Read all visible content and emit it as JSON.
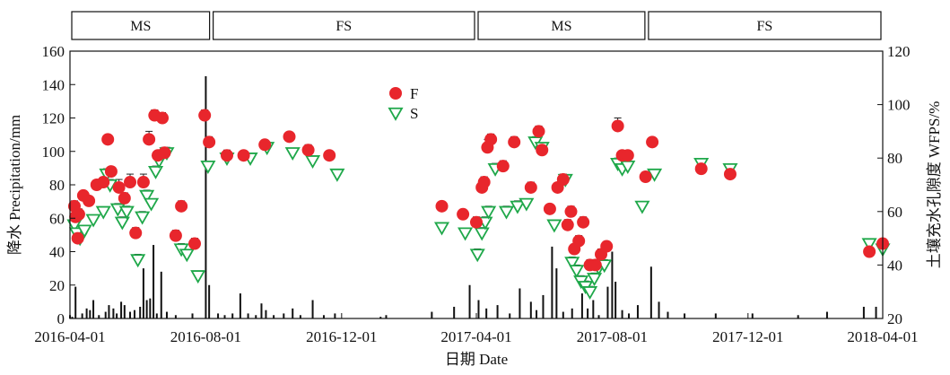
{
  "chart_data": {
    "type": "scatter",
    "season_bands": [
      {
        "label": "MS",
        "start": "2016-04-01",
        "end": "2016-08-06"
      },
      {
        "label": "FS",
        "start": "2016-08-06",
        "end": "2017-04-01"
      },
      {
        "label": "MS",
        "start": "2017-04-01",
        "end": "2017-09-01"
      },
      {
        "label": "FS",
        "start": "2017-09-01",
        "end": "2018-04-01"
      }
    ],
    "x_axis": {
      "label": "日期 Date",
      "range": [
        "2016-04-01",
        "2018-04-01"
      ],
      "ticks": [
        "2016-04-01",
        "2016-08-01",
        "2016-12-01",
        "2017-04-01",
        "2017-08-01",
        "2017-12-01",
        "2018-04-01"
      ]
    },
    "y_axis_left": {
      "label": "降水 Precipitation/mm",
      "range": [
        0,
        160
      ],
      "ticks": [
        0,
        20,
        40,
        60,
        80,
        100,
        120,
        140,
        160
      ]
    },
    "y_axis_right": {
      "label": "土壤充水孔隙度 WFPS/%",
      "range": [
        20,
        120
      ],
      "ticks": [
        20,
        40,
        60,
        80,
        100,
        120
      ]
    },
    "legend": {
      "position": "upper-center",
      "items": [
        {
          "name": "F",
          "marker": "filled-circle",
          "color": "#e8262c"
        },
        {
          "name": "S",
          "marker": "open-triangle-down",
          "color": "#1fa84a"
        }
      ]
    },
    "colors": {
      "F": "#e8262c",
      "S": "#1fa84a",
      "precipitation": "#111111"
    },
    "series": [
      {
        "name": "F",
        "axis": "right",
        "points": [
          [
            "2016-04-05",
            62,
            2
          ],
          [
            "2016-04-06",
            58,
            2
          ],
          [
            "2016-04-08",
            50,
            1.5
          ],
          [
            "2016-04-09",
            59,
            2
          ],
          [
            "2016-04-13",
            66,
            1.5
          ],
          [
            "2016-04-18",
            64,
            1.5
          ],
          [
            "2016-04-25",
            70,
            1.5
          ],
          [
            "2016-05-01",
            71,
            1.5
          ],
          [
            "2016-05-05",
            87,
            1.5
          ],
          [
            "2016-05-08",
            75,
            1.5
          ],
          [
            "2016-05-15",
            69,
            3
          ],
          [
            "2016-05-20",
            65,
            2
          ],
          [
            "2016-05-25",
            71,
            3
          ],
          [
            "2016-05-30",
            52,
            2
          ],
          [
            "2016-06-06",
            71,
            3
          ],
          [
            "2016-06-11",
            87,
            3
          ],
          [
            "2016-06-16",
            96,
            2
          ],
          [
            "2016-06-19",
            81,
            1.5
          ],
          [
            "2016-06-23",
            95,
            2
          ],
          [
            "2016-06-25",
            82,
            2
          ],
          [
            "2016-07-05",
            51,
            2
          ],
          [
            "2016-07-10",
            62,
            2
          ],
          [
            "2016-07-22",
            48,
            2
          ],
          [
            "2016-07-31",
            96,
            2
          ],
          [
            "2016-08-04",
            86,
            2
          ],
          [
            "2016-08-20",
            81,
            2
          ],
          [
            "2016-09-04",
            81,
            1.5
          ],
          [
            "2016-09-23",
            85,
            1.5
          ],
          [
            "2016-10-15",
            88,
            1.5
          ],
          [
            "2016-11-01",
            83,
            2
          ],
          [
            "2016-11-20",
            81,
            1.5
          ],
          [
            "2017-03-01",
            62,
            1.5
          ],
          [
            "2017-03-20",
            59,
            1.5
          ],
          [
            "2017-04-01",
            56,
            2
          ],
          [
            "2017-04-06",
            69,
            2
          ],
          [
            "2017-04-08",
            71,
            2
          ],
          [
            "2017-04-11",
            84,
            3
          ],
          [
            "2017-04-14",
            87,
            2
          ],
          [
            "2017-04-25",
            77,
            2
          ],
          [
            "2017-05-05",
            86,
            2
          ],
          [
            "2017-05-20",
            69,
            2
          ],
          [
            "2017-05-27",
            90,
            2
          ],
          [
            "2017-05-30",
            83,
            2
          ],
          [
            "2017-06-06",
            61,
            1.5
          ],
          [
            "2017-06-13",
            69,
            1.5
          ],
          [
            "2017-06-18",
            72,
            2
          ],
          [
            "2017-06-22",
            55,
            2
          ],
          [
            "2017-06-25",
            60,
            2
          ],
          [
            "2017-06-28",
            46,
            1.5
          ],
          [
            "2017-07-02",
            49,
            2
          ],
          [
            "2017-07-06",
            56,
            2
          ],
          [
            "2017-07-12",
            40,
            2
          ],
          [
            "2017-07-17",
            40,
            2
          ],
          [
            "2017-07-22",
            44,
            2
          ],
          [
            "2017-07-27",
            47,
            1.5
          ],
          [
            "2017-08-06",
            92,
            3
          ],
          [
            "2017-08-10",
            81,
            1.5
          ],
          [
            "2017-08-15",
            81,
            1.5
          ],
          [
            "2017-08-31",
            73,
            1.5
          ],
          [
            "2017-09-06",
            86,
            1.5
          ],
          [
            "2017-10-20",
            76,
            1.5
          ],
          [
            "2017-11-15",
            74,
            1.5
          ],
          [
            "2018-03-20",
            45,
            1.5
          ],
          [
            "2018-04-01",
            48,
            1.5
          ]
        ]
      },
      {
        "name": "S",
        "axis": "right",
        "points": [
          [
            "2016-04-05",
            55,
            2
          ],
          [
            "2016-04-07",
            52,
            1.5
          ],
          [
            "2016-04-10",
            50,
            1.5
          ],
          [
            "2016-04-14",
            53,
            1.5
          ],
          [
            "2016-04-22",
            57,
            1.5
          ],
          [
            "2016-05-01",
            60,
            1.5
          ],
          [
            "2016-05-04",
            74,
            2
          ],
          [
            "2016-05-07",
            70,
            2
          ],
          [
            "2016-05-14",
            61,
            2
          ],
          [
            "2016-05-18",
            56,
            2
          ],
          [
            "2016-05-22",
            60,
            2
          ],
          [
            "2016-06-01",
            42,
            2
          ],
          [
            "2016-06-05",
            58,
            2
          ],
          [
            "2016-06-09",
            66,
            2
          ],
          [
            "2016-06-13",
            63,
            1.5
          ],
          [
            "2016-06-17",
            75,
            2
          ],
          [
            "2016-06-20",
            79,
            2
          ],
          [
            "2016-06-27",
            82,
            2
          ],
          [
            "2016-07-10",
            46,
            2
          ],
          [
            "2016-07-15",
            44,
            1.5
          ],
          [
            "2016-07-25",
            36,
            1.5
          ],
          [
            "2016-08-03",
            77,
            1.5
          ],
          [
            "2016-08-20",
            80,
            1.5
          ],
          [
            "2016-09-10",
            80,
            1.5
          ],
          [
            "2016-09-25",
            84,
            1.5
          ],
          [
            "2016-10-18",
            82,
            1.5
          ],
          [
            "2016-11-05",
            79,
            1.5
          ],
          [
            "2016-11-27",
            74,
            1.5
          ],
          [
            "2017-03-01",
            54,
            1.5
          ],
          [
            "2017-03-22",
            52,
            1.5
          ],
          [
            "2017-04-02",
            44,
            2
          ],
          [
            "2017-04-06",
            52,
            2
          ],
          [
            "2017-04-09",
            56,
            2
          ],
          [
            "2017-04-12",
            60,
            2
          ],
          [
            "2017-04-18",
            76,
            2
          ],
          [
            "2017-04-28",
            60,
            2
          ],
          [
            "2017-05-08",
            62,
            2
          ],
          [
            "2017-05-16",
            63,
            1.5
          ],
          [
            "2017-05-24",
            86,
            2
          ],
          [
            "2017-05-30",
            84,
            1.5
          ],
          [
            "2017-06-10",
            55,
            1.5
          ],
          [
            "2017-06-20",
            72,
            1.5
          ],
          [
            "2017-06-26",
            41,
            2
          ],
          [
            "2017-06-30",
            38,
            2
          ],
          [
            "2017-07-04",
            34,
            2
          ],
          [
            "2017-07-08",
            32,
            2
          ],
          [
            "2017-07-12",
            30,
            2
          ],
          [
            "2017-07-16",
            35,
            2
          ],
          [
            "2017-07-20",
            39,
            2
          ],
          [
            "2017-07-25",
            40,
            2
          ],
          [
            "2017-08-06",
            78,
            2
          ],
          [
            "2017-08-10",
            76,
            2
          ],
          [
            "2017-08-15",
            77,
            1.5
          ],
          [
            "2017-08-28",
            62,
            1.5
          ],
          [
            "2017-09-08",
            74,
            1.5
          ],
          [
            "2017-10-20",
            78,
            1.5
          ],
          [
            "2017-11-15",
            76,
            1.5
          ],
          [
            "2018-03-20",
            48,
            1.5
          ],
          [
            "2018-04-01",
            46,
            1.5
          ]
        ]
      },
      {
        "name": "precipitation",
        "axis": "left",
        "type": "bar",
        "points": [
          [
            "2016-04-01",
            2
          ],
          [
            "2016-04-03",
            1
          ],
          [
            "2016-04-06",
            19
          ],
          [
            "2016-04-12",
            3
          ],
          [
            "2016-04-16",
            6
          ],
          [
            "2016-04-19",
            5
          ],
          [
            "2016-04-22",
            11
          ],
          [
            "2016-04-27",
            2
          ],
          [
            "2016-05-03",
            4
          ],
          [
            "2016-05-06",
            8
          ],
          [
            "2016-05-10",
            6
          ],
          [
            "2016-05-13",
            3
          ],
          [
            "2016-05-17",
            10
          ],
          [
            "2016-05-20",
            8
          ],
          [
            "2016-05-25",
            4
          ],
          [
            "2016-05-29",
            5
          ],
          [
            "2016-06-03",
            7
          ],
          [
            "2016-06-06",
            30
          ],
          [
            "2016-06-09",
            11
          ],
          [
            "2016-06-12",
            12
          ],
          [
            "2016-06-15",
            44
          ],
          [
            "2016-06-18",
            3
          ],
          [
            "2016-06-22",
            28
          ],
          [
            "2016-06-27",
            4
          ],
          [
            "2016-07-05",
            2
          ],
          [
            "2016-07-20",
            3
          ],
          [
            "2016-08-01",
            145
          ],
          [
            "2016-08-04",
            20
          ],
          [
            "2016-08-12",
            3
          ],
          [
            "2016-08-18",
            2
          ],
          [
            "2016-08-25",
            3
          ],
          [
            "2016-09-01",
            15
          ],
          [
            "2016-09-08",
            3
          ],
          [
            "2016-09-15",
            2
          ],
          [
            "2016-09-20",
            9
          ],
          [
            "2016-09-24",
            5
          ],
          [
            "2016-10-01",
            2
          ],
          [
            "2016-10-10",
            3
          ],
          [
            "2016-10-18",
            6
          ],
          [
            "2016-10-25",
            2
          ],
          [
            "2016-11-05",
            11
          ],
          [
            "2016-11-15",
            2
          ],
          [
            "2016-11-25",
            3
          ],
          [
            "2017-01-05",
            1
          ],
          [
            "2017-01-10",
            2
          ],
          [
            "2017-02-20",
            4
          ],
          [
            "2017-03-12",
            7
          ],
          [
            "2017-03-26",
            20
          ],
          [
            "2017-04-03",
            11
          ],
          [
            "2017-04-10",
            6
          ],
          [
            "2017-04-20",
            8
          ],
          [
            "2017-05-01",
            3
          ],
          [
            "2017-05-10",
            18
          ],
          [
            "2017-05-20",
            10
          ],
          [
            "2017-05-25",
            5
          ],
          [
            "2017-05-31",
            14
          ],
          [
            "2017-06-08",
            43
          ],
          [
            "2017-06-12",
            30
          ],
          [
            "2017-06-18",
            4
          ],
          [
            "2017-06-26",
            6
          ],
          [
            "2017-07-05",
            15
          ],
          [
            "2017-07-10",
            6
          ],
          [
            "2017-07-15",
            11
          ],
          [
            "2017-07-20",
            2
          ],
          [
            "2017-07-28",
            19
          ],
          [
            "2017-08-01",
            40
          ],
          [
            "2017-08-04",
            22
          ],
          [
            "2017-08-10",
            5
          ],
          [
            "2017-08-16",
            3
          ],
          [
            "2017-08-24",
            8
          ],
          [
            "2017-09-05",
            31
          ],
          [
            "2017-09-12",
            10
          ],
          [
            "2017-09-20",
            4
          ],
          [
            "2017-10-05",
            3
          ],
          [
            "2017-11-02",
            3
          ],
          [
            "2017-12-05",
            3
          ],
          [
            "2018-01-15",
            2
          ],
          [
            "2018-02-10",
            4
          ],
          [
            "2018-03-15",
            7
          ],
          [
            "2018-03-26",
            7
          ]
        ]
      }
    ]
  }
}
